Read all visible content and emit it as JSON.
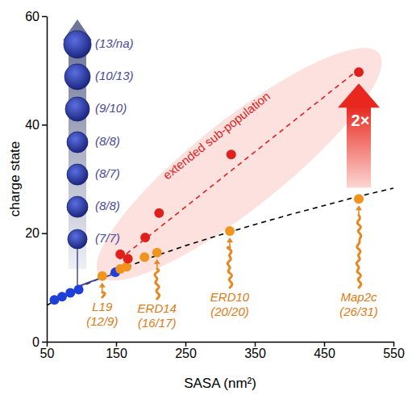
{
  "chart_data": {
    "type": "scatter",
    "x_label": "SASA (nm²)",
    "y_label": "charge state",
    "xlim": [
      50,
      550
    ],
    "xticks": [
      50,
      150,
      250,
      350,
      450,
      550
    ],
    "ylim": [
      0,
      60
    ],
    "yticks": [
      0,
      20,
      40,
      60
    ],
    "series": [
      {
        "type": "line",
        "color": "#000000",
        "line_style": "dashed",
        "x": [
          50,
          100,
          150,
          200,
          250,
          300,
          350,
          400,
          450,
          500,
          550
        ],
        "values": [
          6.7,
          10.2,
          13.0,
          15.5,
          17.7,
          19.7,
          21.6,
          23.4,
          25.1,
          26.8,
          28.3
        ]
      },
      {
        "type": "line",
        "color": "#e0201b",
        "line_style": "dashed",
        "x": [
          155,
          500
        ],
        "values": [
          15.2,
          50.2
        ]
      },
      {
        "type": "line",
        "color": "#4a4a9c",
        "line_style": "solid",
        "x": [
          96,
          110,
          125,
          150
        ],
        "values": [
          10.2,
          10.9,
          11.6,
          12.6
        ]
      },
      {
        "type": "scatter",
        "color": "#1f3fd9",
        "marker": "circle",
        "x": [
          61,
          72,
          84,
          96,
          149
        ],
        "values": [
          7.7,
          8.3,
          9.0,
          9.6,
          12.8
        ]
      },
      {
        "type": "scatter",
        "color": "#f0941e",
        "marker": "circle",
        "x": [
          130,
          156,
          165,
          191,
          209,
          314,
          500
        ],
        "values": [
          12.1,
          13.4,
          13.8,
          15.6,
          16.4,
          20.4,
          26.3
        ]
      },
      {
        "name": "extended sub-population",
        "type": "scatter",
        "color": "#e0201b",
        "marker": "circle",
        "x": [
          156,
          167,
          192,
          212,
          316,
          500
        ],
        "values": [
          16.1,
          15.3,
          19.2,
          23.7,
          34.5,
          49.7
        ]
      }
    ],
    "globular_labels": [
      "(13/na)",
      "(10/13)",
      "(9/10)",
      "(8/8)",
      "(8/7)",
      "(8/8)",
      "(7/7)"
    ],
    "protein_labels": [
      {
        "name": "L19",
        "counts": "(12/9)"
      },
      {
        "name": "ERD14",
        "counts": "(16/17)"
      },
      {
        "name": "ERD10",
        "counts": "(20/20)"
      },
      {
        "name": "Map2c",
        "counts": "(26/31)"
      }
    ],
    "annotations": [
      "2×"
    ]
  }
}
